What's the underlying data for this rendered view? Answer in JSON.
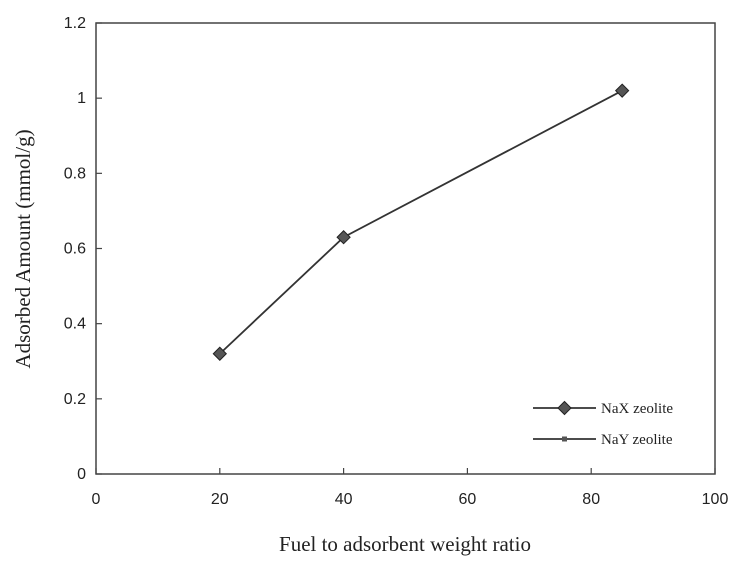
{
  "chart_data": {
    "type": "line",
    "title": "",
    "xlabel": "Fuel to adsorbent weight ratio",
    "ylabel": "Adsorbed Amount (mmol/g)",
    "xlim": [
      0,
      100
    ],
    "ylim": [
      0,
      1.2
    ],
    "x_ticks": [
      "0",
      "20",
      "40",
      "60",
      "80",
      "100"
    ],
    "y_ticks": [
      "0",
      "0.2",
      "0.4",
      "0.6",
      "0.8",
      "1",
      "1.2"
    ],
    "grid": false,
    "legend_position": "bottom-right",
    "series": [
      {
        "name": "NaX zeolite",
        "marker": "diamond",
        "color": "#333333",
        "x": [
          20,
          40,
          85
        ],
        "y": [
          0.32,
          0.63,
          1.02
        ]
      },
      {
        "name": "NaY zeolite",
        "marker": "square-small",
        "color": "#333333",
        "x": [],
        "y": []
      }
    ]
  }
}
